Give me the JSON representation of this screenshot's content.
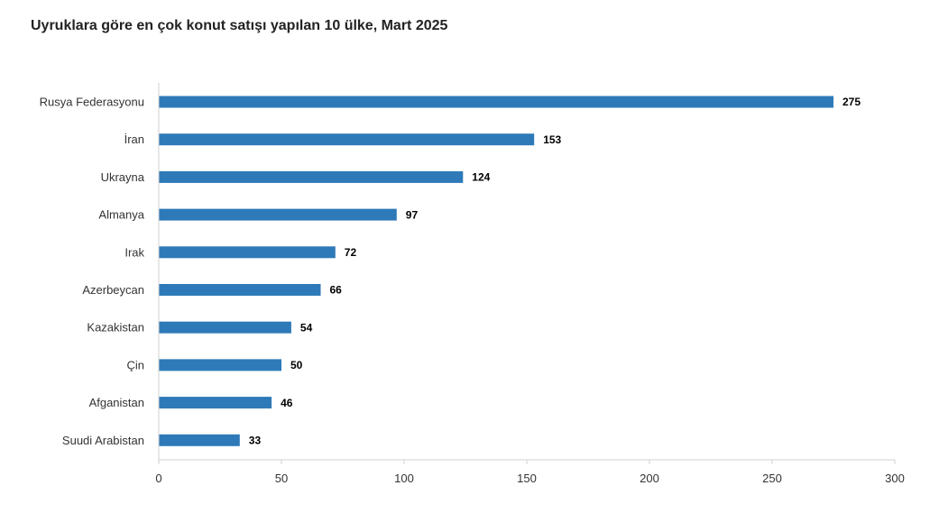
{
  "chart_data": {
    "type": "bar",
    "orientation": "horizontal",
    "title": "Uyruklara göre en çok konut satışı yapılan 10 ülke, Mart 2025",
    "xlabel": "",
    "ylabel": "",
    "categories": [
      "Rusya Federasyonu",
      "İran",
      "Ukrayna",
      "Almanya",
      "Irak",
      "Azerbeycan",
      "Kazakistan",
      "Çin",
      "Afganistan",
      "Suudi Arabistan"
    ],
    "values": [
      275,
      153,
      124,
      97,
      72,
      66,
      54,
      50,
      46,
      33
    ],
    "xlim": [
      0,
      300
    ],
    "xticks": [
      "0",
      "50",
      "100",
      "150",
      "200",
      "250",
      "300"
    ],
    "grid": false,
    "bar_color": "#2e7ab8",
    "data_labels": true
  }
}
